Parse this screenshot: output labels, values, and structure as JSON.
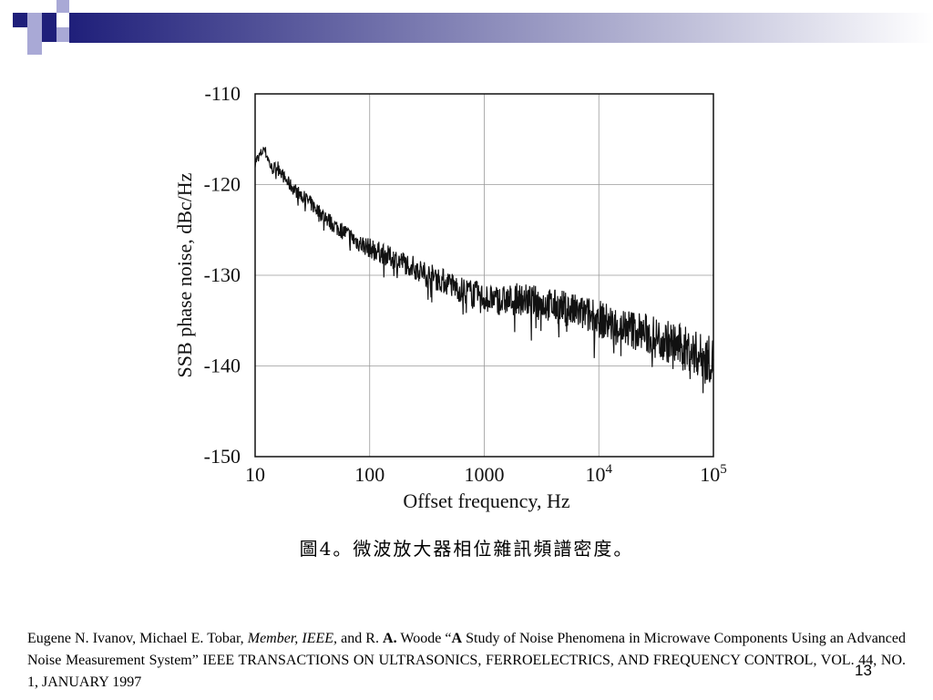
{
  "deco_colors": {
    "dark": "#1f1f7a",
    "light": "#a9a9d6",
    "gradient_end": "#ffffff"
  },
  "chart_data": {
    "type": "line",
    "xlabel": "Offset frequency, Hz",
    "ylabel": "SSB phase noise, dBc/Hz",
    "x_scale": "log",
    "xlim": [
      10,
      100000
    ],
    "ylim": [
      -150,
      -110
    ],
    "grid": true,
    "x_ticks": [
      {
        "value": 10,
        "label": "10"
      },
      {
        "value": 100,
        "label": "100"
      },
      {
        "value": 1000,
        "label": "1000"
      },
      {
        "value": 10000,
        "base": "10",
        "exp": "4"
      },
      {
        "value": 100000,
        "base": "10",
        "exp": "5"
      }
    ],
    "y_ticks": [
      {
        "value": -110,
        "label": "-110"
      },
      {
        "value": -120,
        "label": "-120"
      },
      {
        "value": -130,
        "label": "-130"
      },
      {
        "value": -140,
        "label": "-140"
      },
      {
        "value": -150,
        "label": "-150"
      }
    ],
    "series": [
      {
        "x": [
          10,
          11,
          12,
          13,
          14,
          16,
          18,
          20,
          25,
          30,
          35,
          40,
          50,
          60,
          70,
          80,
          100,
          120,
          150,
          200,
          250,
          300,
          400,
          500,
          600,
          700,
          800,
          1000,
          1200,
          1500,
          2000,
          2500,
          3000,
          4000,
          5000,
          6000,
          7000,
          8000,
          10000,
          12000,
          15000,
          20000,
          25000,
          30000,
          40000,
          50000,
          60000,
          70000,
          80000,
          100000
        ],
        "y": [
          -117.5,
          -116.8,
          -116.0,
          -117.2,
          -118.3,
          -118.0,
          -119.3,
          -120.0,
          -121.2,
          -122.0,
          -122.8,
          -123.5,
          -124.6,
          -125.2,
          -125.9,
          -126.4,
          -127.0,
          -127.4,
          -128.0,
          -128.6,
          -129.2,
          -129.8,
          -130.4,
          -131.0,
          -131.5,
          -131.8,
          -132.0,
          -132.5,
          -132.7,
          -132.8,
          -132.6,
          -132.8,
          -133.0,
          -133.4,
          -133.6,
          -134.0,
          -134.2,
          -134.4,
          -134.8,
          -135.2,
          -135.6,
          -136.0,
          -136.4,
          -136.8,
          -137.3,
          -137.8,
          -138.2,
          -138.6,
          -139.0,
          -139.4
        ]
      }
    ]
  },
  "caption": "圖4。微波放大器相位雜訊頻譜密度。",
  "citation": {
    "authors": "Eugene N. Ivanov, Michael E. Tobar,",
    "role": "Member, IEEE,",
    "and_r": "and R.",
    "initial": "A.",
    "woode": "Woode “",
    "title_a": "A",
    "rest": "Study of Noise Phenomena in Microwave Components Using an Advanced Noise Measurement System” IEEE TRANSACTIONS ON ULTRASONICS, FERROELECTRICS, AND FREQUENCY CONTROL, VOL. 44, NO. 1, JANUARY 1997"
  },
  "page_number": "13"
}
